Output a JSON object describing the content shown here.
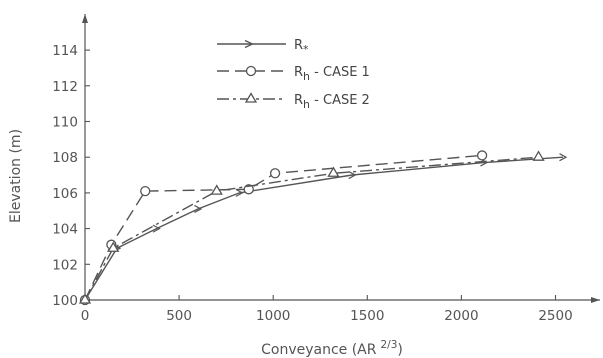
{
  "chart_data": {
    "type": "line",
    "title": "",
    "xlabel": "Conveyance (AR",
    "xlabel_sup": "2/3",
    "xlabel_close": ")",
    "ylabel": "Elevation (m)",
    "xlim": [
      0,
      2750
    ],
    "ylim": [
      100,
      115.5
    ],
    "x_ticks": [
      0,
      500,
      1000,
      1500,
      2000,
      2500
    ],
    "x_tick_labels": [
      "0",
      "500",
      "1000",
      "1500",
      "2000",
      "2500"
    ],
    "y_ticks": [
      100,
      102,
      104,
      106,
      108,
      110,
      112,
      114
    ],
    "y_tick_labels": [
      "100",
      "102",
      "104",
      "106",
      "108",
      "110",
      "112",
      "114"
    ],
    "grid": false,
    "legend_position": "top-center",
    "series": [
      {
        "name": "R",
        "name_sub": "*",
        "line_style": "solid",
        "marker": "arrow",
        "x": [
          0,
          170,
          380,
          600,
          820,
          1420,
          2120,
          2540
        ],
        "y": [
          100,
          102.9,
          104.0,
          105.1,
          106.0,
          107.0,
          107.7,
          108.0
        ]
      },
      {
        "name": "R",
        "name_sub": "h",
        "name_suffix": " - CASE 1",
        "line_style": "dashed",
        "marker": "circle",
        "x": [
          0,
          140,
          320,
          870,
          1010,
          2110
        ],
        "y": [
          100,
          103.1,
          106.1,
          106.2,
          107.1,
          108.1
        ]
      },
      {
        "name": "R",
        "name_sub": "h",
        "name_suffix": " - CASE 2",
        "line_style": "dashdot",
        "marker": "triangle",
        "x": [
          0,
          150,
          700,
          1320,
          2410
        ],
        "y": [
          100,
          102.9,
          106.1,
          107.1,
          108.0
        ]
      }
    ]
  }
}
